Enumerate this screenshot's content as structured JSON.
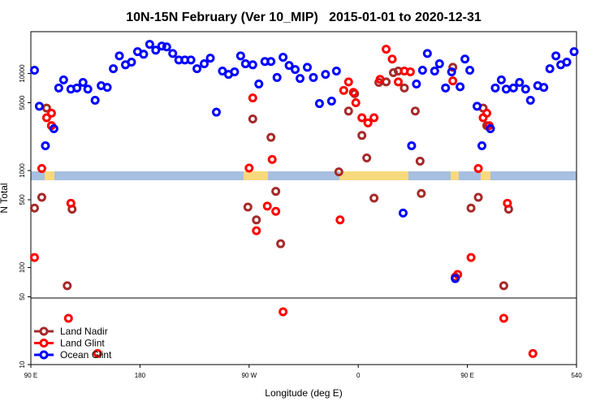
{
  "chart_data": {
    "type": "scatter",
    "title": "10N-15N February (Ver 10_MIP)   2015-01-01 to 2020-12-31",
    "xlabel": "Longitude (deg E)",
    "ylabel": "N Total",
    "xlim": [
      90,
      540
    ],
    "xticks": [
      {
        "value": 90,
        "label": "90 E"
      },
      180,
      {
        "value": 270,
        "label": "90 W"
      },
      {
        "value": 360,
        "label": "0"
      },
      {
        "value": 450,
        "label": "90 E"
      },
      540
    ],
    "ylim": [
      10,
      27000
    ],
    "yticks": [
      10,
      50,
      100,
      500,
      1000,
      5000,
      10000
    ],
    "log_y": true,
    "legend": "lower left",
    "series": [
      {
        "name": "Land Nadir",
        "color": "#a52a2a",
        "x": [
          93,
          99,
          103,
          107,
          120,
          124,
          273,
          269,
          276,
          288,
          292,
          296,
          344,
          352,
          357,
          363,
          367,
          373,
          377,
          383,
          389,
          393,
          398,
          407,
          411,
          412,
          438,
          440,
          453,
          459,
          463,
          466,
          480,
          484
        ],
        "values": [
          410,
          530,
          4400,
          2900,
          65,
          400,
          3400,
          420,
          310,
          2200,
          610,
          176,
          970,
          4100,
          6200,
          2300,
          1350,
          520,
          8100,
          8200,
          10200,
          10600,
          7100,
          4100,
          1250,
          580,
          11600,
          80,
          410,
          530,
          4400,
          2900,
          65,
          400
        ]
      },
      {
        "name": "Land Glint",
        "color": "#ff0000",
        "x": [
          93,
          99,
          103,
          107,
          107,
          123,
          121,
          145,
          270,
          273,
          276,
          285,
          289,
          292,
          298,
          345,
          348,
          352,
          356,
          358,
          363,
          368,
          373,
          378,
          383,
          388,
          393,
          398,
          403,
          442,
          438,
          453,
          459,
          463,
          466,
          468,
          483,
          480,
          504
        ],
        "values": [
          127,
          1050,
          3500,
          3900,
          2900,
          460,
          30,
          13,
          1060,
          5600,
          240,
          430,
          1300,
          380,
          35,
          310,
          6700,
          8200,
          6400,
          5000,
          3500,
          3100,
          3500,
          8700,
          17800,
          14100,
          8200,
          10600,
          10400,
          85,
          8400,
          127,
          1050,
          3500,
          3900,
          2900,
          460,
          30,
          13
        ]
      },
      {
        "name": "Ocean Glint",
        "color": "#0000ff",
        "x": [
          93,
          97,
          102,
          109,
          113,
          117,
          123,
          128,
          133,
          137,
          143,
          148,
          153,
          158,
          163,
          168,
          173,
          178,
          183,
          188,
          193,
          198,
          202,
          207,
          212,
          217,
          222,
          227,
          233,
          238,
          243,
          248,
          253,
          258,
          263,
          267,
          273,
          278,
          283,
          288,
          293,
          298,
          303,
          308,
          312,
          318,
          323,
          328,
          333,
          338,
          342,
          397,
          404,
          408,
          413,
          417,
          423,
          427,
          432,
          437,
          440,
          444,
          448,
          452,
          458,
          462,
          469,
          473,
          478,
          482,
          488,
          493,
          498,
          502,
          508,
          513,
          518,
          523,
          527,
          532,
          538
        ],
        "values": [
          10800,
          4600,
          1800,
          2700,
          7100,
          8600,
          6900,
          7100,
          8100,
          6900,
          5300,
          7500,
          7200,
          11200,
          15200,
          12300,
          13100,
          16800,
          15800,
          20000,
          17400,
          19200,
          18800,
          16100,
          13800,
          13800,
          13800,
          11200,
          12600,
          14400,
          4000,
          10600,
          9800,
          10400,
          15200,
          12600,
          12300,
          7800,
          13300,
          13300,
          9100,
          14700,
          12100,
          11000,
          8900,
          11600,
          9100,
          4900,
          9800,
          5200,
          10600,
          365,
          1800,
          7800,
          10800,
          16100,
          10600,
          12600,
          7100,
          10400,
          77,
          7300,
          14100,
          10800,
          4600,
          1800,
          2700,
          7100,
          8600,
          6900,
          7100,
          8100,
          6900,
          5300,
          7500,
          7200,
          11200,
          15200,
          12300,
          13100,
          16800
        ]
      }
    ]
  }
}
